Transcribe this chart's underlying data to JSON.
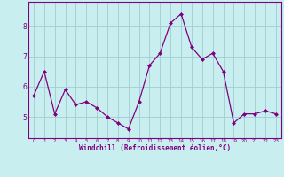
{
  "x": [
    0,
    1,
    2,
    3,
    4,
    5,
    6,
    7,
    8,
    9,
    10,
    11,
    12,
    13,
    14,
    15,
    16,
    17,
    18,
    19,
    20,
    21,
    22,
    23
  ],
  "y": [
    5.7,
    6.5,
    5.1,
    5.9,
    5.4,
    5.5,
    5.3,
    5.0,
    4.8,
    4.6,
    5.5,
    6.7,
    7.1,
    8.1,
    8.4,
    7.3,
    6.9,
    7.1,
    6.5,
    4.8,
    5.1,
    5.1,
    5.2,
    5.1
  ],
  "line_color": "#800080",
  "marker": "D",
  "marker_size": 2.0,
  "bg_color": "#c8eef0",
  "grid_color": "#a0cdd0",
  "xlabel": "Windchill (Refroidissement éolien,°C)",
  "xlabel_color": "#800080",
  "tick_color": "#800080",
  "spine_color": "#800080",
  "ylim": [
    4.3,
    8.8
  ],
  "xlim": [
    -0.5,
    23.5
  ],
  "yticks": [
    5,
    6,
    7,
    8
  ],
  "xticks": [
    0,
    1,
    2,
    3,
    4,
    5,
    6,
    7,
    8,
    9,
    10,
    11,
    12,
    13,
    14,
    15,
    16,
    17,
    18,
    19,
    20,
    21,
    22,
    23
  ]
}
